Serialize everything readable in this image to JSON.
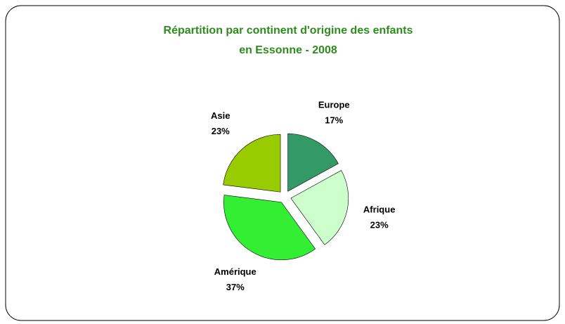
{
  "chart_data": {
    "type": "pie",
    "title": [
      "Répartition par continent d'origine des enfants",
      "en Essonne -  2008"
    ],
    "categories": [
      "Europe",
      "Afrique",
      "Amérique",
      "Asie"
    ],
    "values": [
      17,
      23,
      37,
      23
    ],
    "value_labels": [
      "17%",
      "23%",
      "37%",
      "23%"
    ],
    "colors": [
      "#339966",
      "#ccffcc",
      "#33ee33",
      "#99cc00"
    ]
  }
}
